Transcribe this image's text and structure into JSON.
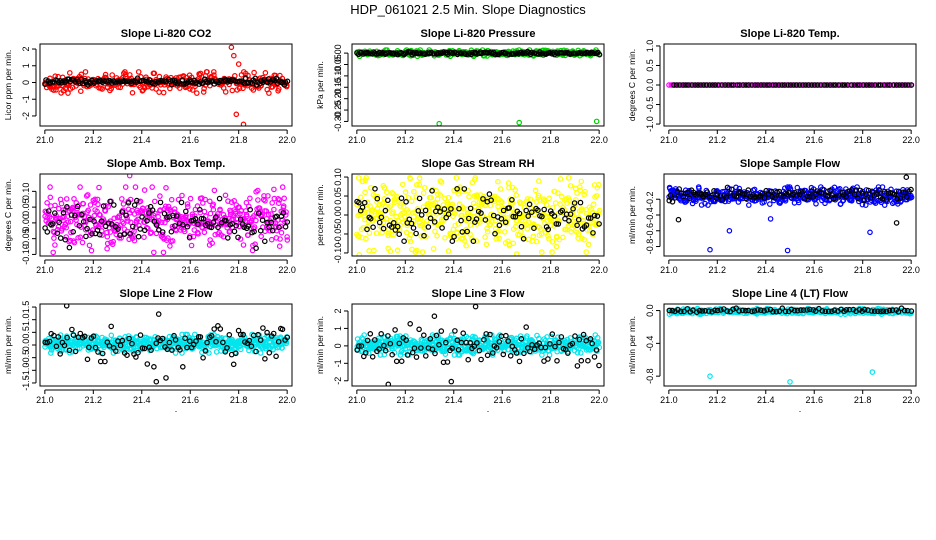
{
  "figure": {
    "title": "HDP_061021  2.5 Min. Slope Diagnostics",
    "bottom_mark": "."
  },
  "chart_data": [
    {
      "type": "scatter",
      "title": "Slope Li-820 CO2",
      "ylabel": "Licor ppm per min.",
      "xlim": [
        20.98,
        22.02
      ],
      "ylim": [
        -2.6,
        2.3
      ],
      "x_ticks": [
        21.0,
        21.2,
        21.4,
        21.6,
        21.8,
        22.0
      ],
      "x_tick_labels": [
        "21.0",
        "21.2",
        "21.4",
        "21.6",
        "21.8",
        "22.0"
      ],
      "y_ticks": [
        -2,
        -1,
        0,
        1,
        2
      ],
      "y_tick_labels": [
        "-2",
        "-1",
        "0",
        "1",
        "2"
      ],
      "series": [
        {
          "color": "#ff0000",
          "x_range": [
            21.0,
            22.0
          ],
          "n": 320,
          "center": 0.0,
          "spread": 0.55,
          "outliers": [
            {
              "x": 21.77,
              "y": 2.1
            },
            {
              "x": 21.78,
              "y": 1.6
            },
            {
              "x": 21.79,
              "y": -1.9
            },
            {
              "x": 21.82,
              "y": -2.5
            },
            {
              "x": 21.8,
              "y": 1.1
            }
          ]
        },
        {
          "color": "#000000",
          "x_range": [
            21.0,
            22.0
          ],
          "n": 160,
          "center": 0.05,
          "spread": 0.18,
          "outliers": []
        }
      ]
    },
    {
      "type": "scatter",
      "title": "Slope Li-820 Pressure",
      "ylabel": "kPa per min.",
      "xlim": [
        20.98,
        22.02
      ],
      "ylim": [
        -0.32,
        0.04
      ],
      "x_ticks": [
        21.0,
        21.2,
        21.4,
        21.6,
        21.8,
        22.0
      ],
      "x_tick_labels": [
        "21.0",
        "21.2",
        "21.4",
        "21.6",
        "21.8",
        "22.0"
      ],
      "y_ticks": [
        0.0,
        -0.05,
        -0.1,
        -0.15,
        -0.2,
        -0.25,
        -0.3
      ],
      "y_tick_labels": [
        "0.00",
        "-0.05",
        "-0.10",
        "-0.15",
        "-0.20",
        "-0.25",
        "-0.30"
      ],
      "series": [
        {
          "color": "#00cc00",
          "x_range": [
            21.0,
            22.0
          ],
          "n": 320,
          "center": 0.0,
          "spread": 0.012,
          "outliers": [
            {
              "x": 21.34,
              "y": -0.31
            },
            {
              "x": 21.67,
              "y": -0.305
            },
            {
              "x": 21.99,
              "y": -0.3
            }
          ]
        },
        {
          "color": "#000000",
          "x_range": [
            21.0,
            22.0
          ],
          "n": 160,
          "center": 0.0,
          "spread": 0.006,
          "outliers": []
        }
      ]
    },
    {
      "type": "scatter",
      "title": "Slope Li-820 Temp.",
      "ylabel": "degrees C per min.",
      "xlim": [
        20.98,
        22.02
      ],
      "ylim": [
        -1.05,
        1.05
      ],
      "x_ticks": [
        21.0,
        21.2,
        21.4,
        21.6,
        21.8,
        22.0
      ],
      "x_tick_labels": [
        "21.0",
        "21.2",
        "21.4",
        "21.6",
        "21.8",
        "22.0"
      ],
      "y_ticks": [
        -1.0,
        -0.5,
        0.0,
        0.5,
        1.0
      ],
      "y_tick_labels": [
        "-1.0",
        "-0.5",
        "0.0",
        "0.5",
        "1.0"
      ],
      "series": [
        {
          "color": "#ff00ff",
          "x_range": [
            21.0,
            22.0
          ],
          "n": 120,
          "center": 0.0,
          "spread": 0.0,
          "outliers": []
        },
        {
          "color": "#000000",
          "x_range": [
            21.02,
            22.0
          ],
          "n": 80,
          "center": 0.0,
          "spread": 0.0,
          "outliers": []
        }
      ]
    },
    {
      "type": "scatter",
      "title": "Slope Amb. Box Temp.",
      "ylabel": "degrees C per min.",
      "xlim": [
        20.98,
        22.02
      ],
      "ylim": [
        -0.105,
        0.155
      ],
      "x_ticks": [
        21.0,
        21.2,
        21.4,
        21.6,
        21.8,
        22.0
      ],
      "x_tick_labels": [
        "21.0",
        "21.2",
        "21.4",
        "21.6",
        "21.8",
        "22.0"
      ],
      "y_ticks": [
        -0.1,
        -0.05,
        0.0,
        0.05,
        0.1
      ],
      "y_tick_labels": [
        "-0.10",
        "-0.05",
        "0.00",
        "0.05",
        "0.10"
      ],
      "series": [
        {
          "color": "#ff00ff",
          "x_range": [
            21.0,
            22.0
          ],
          "n": 480,
          "center": 0.01,
          "spread": 0.09,
          "outliers": [
            {
              "x": 21.35,
              "y": 0.15
            }
          ]
        },
        {
          "color": "#000000",
          "x_range": [
            21.0,
            22.0
          ],
          "n": 120,
          "center": 0.0,
          "spread": 0.07,
          "outliers": []
        }
      ]
    },
    {
      "type": "scatter",
      "title": "Slope Gas Stream RH",
      "ylabel": "percent per min.",
      "xlim": [
        20.98,
        22.02
      ],
      "ylim": [
        -0.108,
        0.108
      ],
      "x_ticks": [
        21.0,
        21.2,
        21.4,
        21.6,
        21.8,
        22.0
      ],
      "x_tick_labels": [
        "21.0",
        "21.2",
        "21.4",
        "21.6",
        "21.8",
        "22.0"
      ],
      "y_ticks": [
        -0.1,
        -0.05,
        0.0,
        0.05,
        0.1
      ],
      "y_tick_labels": [
        "-0.10",
        "-0.05",
        "0.00",
        "0.05",
        "0.10"
      ],
      "series": [
        {
          "color": "#ffff00",
          "x_range": [
            21.0,
            22.0
          ],
          "n": 520,
          "center": 0.0,
          "spread": 0.085,
          "outliers": [
            {
              "x": 21.01,
              "y": -0.105
            },
            {
              "x": 21.66,
              "y": -0.103
            }
          ]
        },
        {
          "color": "#000000",
          "x_range": [
            21.0,
            22.0
          ],
          "n": 120,
          "center": 0.0,
          "spread": 0.06,
          "outliers": []
        }
      ]
    },
    {
      "type": "scatter",
      "title": "Slope Sample Flow",
      "ylabel": "ml/min per min.",
      "xlim": [
        20.98,
        22.02
      ],
      "ylim": [
        -0.92,
        0.12
      ],
      "x_ticks": [
        21.0,
        21.2,
        21.4,
        21.6,
        21.8,
        22.0
      ],
      "x_tick_labels": [
        "21.0",
        "21.2",
        "21.4",
        "21.6",
        "21.8",
        "22.0"
      ],
      "y_ticks": [
        -0.8,
        -0.6,
        -0.4,
        -0.2
      ],
      "y_tick_labels": [
        "-0.8",
        "-0.6",
        "-0.4",
        "-0.2"
      ],
      "series": [
        {
          "color": "#0000ff",
          "x_range": [
            21.0,
            22.0
          ],
          "n": 420,
          "center": -0.16,
          "spread": 0.1,
          "outliers": [
            {
              "x": 21.17,
              "y": -0.84
            },
            {
              "x": 21.49,
              "y": -0.85
            },
            {
              "x": 21.25,
              "y": -0.6
            },
            {
              "x": 21.83,
              "y": -0.62
            },
            {
              "x": 21.42,
              "y": -0.45
            }
          ]
        },
        {
          "color": "#000000",
          "x_range": [
            21.0,
            22.0
          ],
          "n": 120,
          "center": -0.14,
          "spread": 0.08,
          "outliers": [
            {
              "x": 21.98,
              "y": 0.08
            },
            {
              "x": 21.04,
              "y": -0.46
            },
            {
              "x": 21.94,
              "y": -0.5
            }
          ]
        }
      ]
    },
    {
      "type": "scatter",
      "title": "Slope Line 2 Flow",
      "ylabel": "ml/min per min.",
      "xlim": [
        20.98,
        22.02
      ],
      "ylim": [
        -1.62,
        1.62
      ],
      "x_ticks": [
        21.0,
        21.2,
        21.4,
        21.6,
        21.8,
        22.0
      ],
      "x_tick_labels": [
        "21.0",
        "21.2",
        "21.4",
        "21.6",
        "21.8",
        "22.0"
      ],
      "y_ticks": [
        -1.5,
        -1.0,
        -0.5,
        0.0,
        0.5,
        1.0,
        1.5
      ],
      "y_tick_labels": [
        "-1.5",
        "-1.0",
        "-0.5",
        "0.0",
        "0.5",
        "1.0",
        "1.5"
      ],
      "series": [
        {
          "color": "#00e5ee",
          "x_range": [
            21.0,
            22.0
          ],
          "n": 520,
          "center": 0.05,
          "spread": 0.32,
          "outliers": []
        },
        {
          "color": "#000000",
          "x_range": [
            21.0,
            22.0
          ],
          "n": 110,
          "center": 0.0,
          "spread": 0.75,
          "outliers": [
            {
              "x": 21.09,
              "y": 1.55
            },
            {
              "x": 21.46,
              "y": -1.45
            },
            {
              "x": 21.47,
              "y": 1.22
            },
            {
              "x": 21.5,
              "y": -1.3
            }
          ]
        }
      ]
    },
    {
      "type": "scatter",
      "title": "Slope Line 3 Flow",
      "ylabel": "ml/min per min.",
      "xlim": [
        20.98,
        22.02
      ],
      "ylim": [
        -2.3,
        2.4
      ],
      "x_ticks": [
        21.0,
        21.2,
        21.4,
        21.6,
        21.8,
        22.0
      ],
      "x_tick_labels": [
        "21.0",
        "21.2",
        "21.4",
        "21.6",
        "21.8",
        "22.0"
      ],
      "y_ticks": [
        -2,
        -1,
        0,
        1,
        2
      ],
      "y_tick_labels": [
        "-2",
        "-1",
        "0",
        "1",
        "2"
      ],
      "series": [
        {
          "color": "#00e5ee",
          "x_range": [
            21.0,
            22.0
          ],
          "n": 520,
          "center": 0.05,
          "spread": 0.5,
          "outliers": []
        },
        {
          "color": "#000000",
          "x_range": [
            21.0,
            22.0
          ],
          "n": 110,
          "center": 0.0,
          "spread": 1.1,
          "outliers": [
            {
              "x": 21.13,
              "y": -2.2
            },
            {
              "x": 21.49,
              "y": 2.25
            },
            {
              "x": 21.39,
              "y": -2.05
            },
            {
              "x": 21.32,
              "y": 1.7
            }
          ]
        }
      ]
    },
    {
      "type": "scatter",
      "title": "Slope Line 4 (LT) Flow",
      "ylabel": "ml/min per min.",
      "xlim": [
        20.98,
        22.02
      ],
      "ylim": [
        -0.92,
        0.08
      ],
      "x_ticks": [
        21.0,
        21.2,
        21.4,
        21.6,
        21.8,
        22.0
      ],
      "x_tick_labels": [
        "21.0",
        "21.2",
        "21.4",
        "21.6",
        "21.8",
        "22.0"
      ],
      "y_ticks": [
        -0.8,
        -0.4,
        0.0
      ],
      "y_tick_labels": [
        "-0.8",
        "-0.4",
        "0.0"
      ],
      "series": [
        {
          "color": "#00e5ee",
          "x_range": [
            21.0,
            22.0
          ],
          "n": 380,
          "center": -0.01,
          "spread": 0.03,
          "outliers": [
            {
              "x": 21.17,
              "y": -0.8
            },
            {
              "x": 21.5,
              "y": -0.87
            },
            {
              "x": 21.84,
              "y": -0.75
            }
          ]
        },
        {
          "color": "#000000",
          "x_range": [
            21.0,
            22.0
          ],
          "n": 80,
          "center": 0.0,
          "spread": 0.025,
          "outliers": []
        }
      ]
    }
  ]
}
